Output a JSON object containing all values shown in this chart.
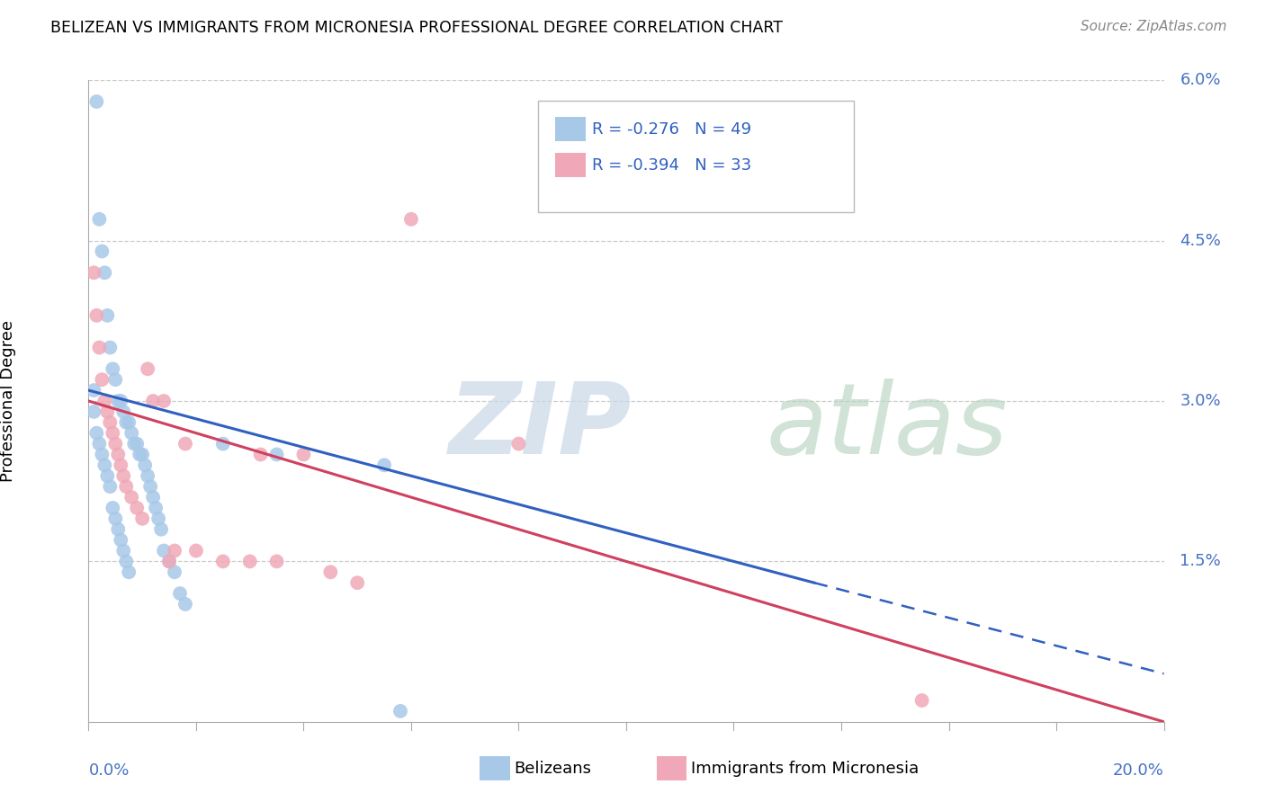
{
  "title": "BELIZEAN VS IMMIGRANTS FROM MICRONESIA PROFESSIONAL DEGREE CORRELATION CHART",
  "source": "Source: ZipAtlas.com",
  "ylabel": "Professional Degree",
  "ylabel_right_ticks": [
    "6.0%",
    "4.5%",
    "3.0%",
    "1.5%"
  ],
  "ylabel_right_vals": [
    6.0,
    4.5,
    3.0,
    1.5
  ],
  "xmin": 0.0,
  "xmax": 20.0,
  "ymin": 0.0,
  "ymax": 6.0,
  "blue_color": "#a8c8e8",
  "pink_color": "#f0a8b8",
  "blue_line_color": "#3060c0",
  "pink_line_color": "#d04060",
  "R_blue": -0.276,
  "N_blue": 49,
  "R_pink": -0.394,
  "N_pink": 33,
  "legend_label_blue": "Belizeans",
  "legend_label_pink": "Immigrants from Micronesia",
  "blue_line_x0": 0.0,
  "blue_line_y0": 3.1,
  "blue_line_x1": 13.5,
  "blue_line_y1": 1.3,
  "blue_dash_x0": 13.5,
  "blue_dash_y0": 1.3,
  "blue_dash_x1": 20.0,
  "blue_dash_y1": 0.45,
  "pink_line_x0": 0.0,
  "pink_line_y0": 3.0,
  "pink_line_x1": 20.0,
  "pink_line_y1": 0.0,
  "blue_scatter_x": [
    0.15,
    0.2,
    0.25,
    0.3,
    0.35,
    0.4,
    0.45,
    0.5,
    0.55,
    0.6,
    0.65,
    0.7,
    0.75,
    0.8,
    0.85,
    0.9,
    0.95,
    1.0,
    1.05,
    1.1,
    1.15,
    1.2,
    1.25,
    1.3,
    1.35,
    1.4,
    1.5,
    1.6,
    1.7,
    1.8,
    0.1,
    0.1,
    0.15,
    0.2,
    0.25,
    0.3,
    0.35,
    0.4,
    0.45,
    0.5,
    0.55,
    0.6,
    0.65,
    0.7,
    0.75,
    2.5,
    3.5,
    5.5,
    5.8
  ],
  "blue_scatter_y": [
    5.8,
    4.7,
    4.4,
    4.2,
    3.8,
    3.5,
    3.3,
    3.2,
    3.0,
    3.0,
    2.9,
    2.8,
    2.8,
    2.7,
    2.6,
    2.6,
    2.5,
    2.5,
    2.4,
    2.3,
    2.2,
    2.1,
    2.0,
    1.9,
    1.8,
    1.6,
    1.5,
    1.4,
    1.2,
    1.1,
    3.1,
    2.9,
    2.7,
    2.6,
    2.5,
    2.4,
    2.3,
    2.2,
    2.0,
    1.9,
    1.8,
    1.7,
    1.6,
    1.5,
    1.4,
    2.6,
    2.5,
    2.4,
    0.1
  ],
  "pink_scatter_x": [
    0.1,
    0.15,
    0.2,
    0.25,
    0.3,
    0.35,
    0.4,
    0.45,
    0.5,
    0.55,
    0.6,
    0.65,
    0.7,
    0.8,
    0.9,
    1.0,
    1.1,
    1.2,
    1.4,
    1.5,
    1.6,
    1.8,
    2.0,
    2.5,
    3.0,
    3.2,
    3.5,
    4.0,
    4.5,
    5.0,
    6.0,
    8.0,
    15.5
  ],
  "pink_scatter_y": [
    4.2,
    3.8,
    3.5,
    3.2,
    3.0,
    2.9,
    2.8,
    2.7,
    2.6,
    2.5,
    2.4,
    2.3,
    2.2,
    2.1,
    2.0,
    1.9,
    3.3,
    3.0,
    3.0,
    1.5,
    1.6,
    2.6,
    1.6,
    1.5,
    1.5,
    2.5,
    1.5,
    2.5,
    1.4,
    1.3,
    4.7,
    2.6,
    0.2
  ]
}
